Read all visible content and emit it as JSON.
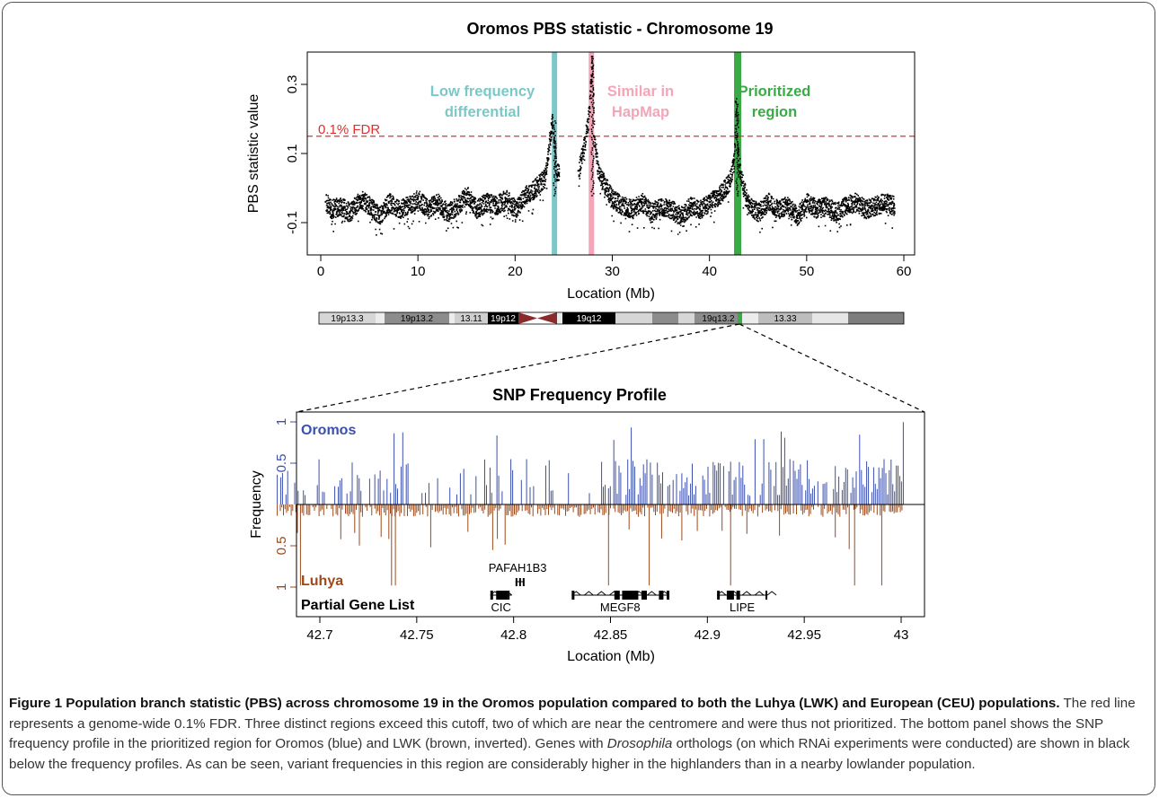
{
  "figure": {
    "top_title": "Oromos PBS statistic - Chromosome 19",
    "bottom_title": "SNP Frequency Profile"
  },
  "caption": {
    "lead": "Figure 1 Population branch statistic (PBS) across chromosome 19 in the Oromos population compared to both the Luhya (LWK) and European (CEU) populations.",
    "text_part1": " The red line represents a genome-wide 0.1% FDR. Three distinct regions exceed this cutoff, two of which are near the centromere and were thus not prioritized. The bottom panel shows the SNP frequency profile in the prioritized region for Oromos (blue) and LWK (brown, inverted). Genes with ",
    "italic": "Drosophila",
    "text_part2": " orthologs (on which RNAi experiments were conducted) are shown in black below the frequency profiles. As can be seen, variant frequencies in this region are considerably higher in the highlanders than in a nearby lowlander population."
  },
  "chart_data": [
    {
      "type": "scatter",
      "title": "Oromos PBS statistic - Chromosome 19",
      "xlabel": "Location (Mb)",
      "ylabel": "PBS statistic value",
      "xlim": [
        0,
        60
      ],
      "ylim": [
        -0.15,
        0.38
      ],
      "x_ticks": [
        0,
        10,
        20,
        30,
        40,
        50,
        60
      ],
      "y_ticks": [
        -0.1,
        0.1,
        0.3
      ],
      "y_tick_labels": [
        "-0.1",
        "0.1",
        "0.3"
      ],
      "threshold": {
        "label": "0.1% FDR",
        "value": 0.15,
        "color": "#e03030"
      },
      "colors": {
        "points": "#000000",
        "low_frequency": "#7cc8c8",
        "similar": "#f2a6b8",
        "prioritized": "#3aaa46"
      },
      "regions": [
        {
          "label_lines": [
            "Low frequency",
            "differential"
          ],
          "start": 23.8,
          "end": 24.3,
          "color": "#7cc8c8"
        },
        {
          "label_lines": [
            "Similar in",
            "HapMap"
          ],
          "start": 27.6,
          "end": 28.1,
          "color": "#f2a6b8"
        },
        {
          "label_lines": [
            "Prioritized",
            "region"
          ],
          "start": 42.6,
          "end": 43.2,
          "color": "#3aaa46"
        }
      ],
      "series": [
        {
          "x": [
            0.5,
            1,
            2,
            3,
            4,
            5,
            6,
            7,
            8,
            9,
            10,
            11,
            12,
            13,
            14,
            15,
            16,
            17,
            18,
            19,
            20,
            21,
            22,
            23,
            23.8,
            24,
            24.2,
            24.5,
            26.5,
            27,
            27.5,
            27.9,
            28.1,
            28.5,
            29,
            30,
            31,
            32,
            33,
            34,
            35,
            36,
            37,
            38,
            39,
            40,
            41,
            42,
            42.5,
            42.7,
            42.9,
            43.2,
            44,
            45,
            46,
            47,
            48,
            49,
            50,
            51,
            52,
            53,
            54,
            55,
            56,
            57,
            58,
            59
          ],
          "y": [
            -0.04,
            -0.06,
            -0.05,
            -0.07,
            -0.03,
            -0.05,
            -0.08,
            -0.04,
            -0.06,
            -0.05,
            -0.03,
            -0.06,
            -0.04,
            -0.07,
            -0.05,
            -0.02,
            -0.06,
            -0.04,
            -0.05,
            -0.03,
            -0.06,
            -0.02,
            0.0,
            0.03,
            0.2,
            0.12,
            0.05,
            0.04,
            0.05,
            0.12,
            0.2,
            0.38,
            0.15,
            0.05,
            0.02,
            -0.03,
            -0.05,
            -0.06,
            -0.04,
            -0.07,
            -0.05,
            -0.06,
            -0.08,
            -0.05,
            -0.06,
            -0.04,
            -0.02,
            0.02,
            0.08,
            0.25,
            0.1,
            0.03,
            -0.05,
            -0.07,
            -0.04,
            -0.06,
            -0.05,
            -0.08,
            -0.04,
            -0.06,
            -0.05,
            -0.07,
            -0.05,
            -0.04,
            -0.06,
            -0.05,
            -0.04,
            -0.05
          ]
        }
      ]
    },
    {
      "type": "ideogram",
      "band_labels": [
        "19p13.3",
        "19p13.2",
        "13.11",
        "19p12",
        "19q12",
        "19q13.2",
        "13.33"
      ]
    },
    {
      "type": "bar",
      "title": "SNP Frequency Profile",
      "xlabel": "Location (Mb)",
      "ylabel": "Frequency",
      "xlim": [
        42.675,
        43.005
      ],
      "x_ticks": [
        42.7,
        42.75,
        42.8,
        42.85,
        42.9,
        42.95,
        43
      ],
      "x_tick_labels": [
        "42.7",
        "42.75",
        "42.8",
        "42.85",
        "42.9",
        "42.95",
        "43"
      ],
      "upper_tick_labels": [
        "1",
        "0.5"
      ],
      "lower_tick_labels": [
        "0.5",
        "1"
      ],
      "series": [
        {
          "name": "Oromos",
          "color": "#3b4fae",
          "direction": "up"
        },
        {
          "name": "Luhya",
          "color": "#9c4a1a",
          "direction": "down"
        }
      ],
      "gene_panel_label": "Partial Gene List",
      "genes": [
        {
          "name": "PAFAH1B3",
          "start": 42.801,
          "end": 42.805,
          "row": "upper"
        },
        {
          "name": "CIC",
          "start": 42.788,
          "end": 42.799,
          "row": "lower"
        },
        {
          "name": "MEGF8",
          "start": 42.83,
          "end": 42.88,
          "row": "lower"
        },
        {
          "name": "LIPE",
          "start": 42.905,
          "end": 42.931,
          "row": "lower"
        }
      ]
    }
  ]
}
